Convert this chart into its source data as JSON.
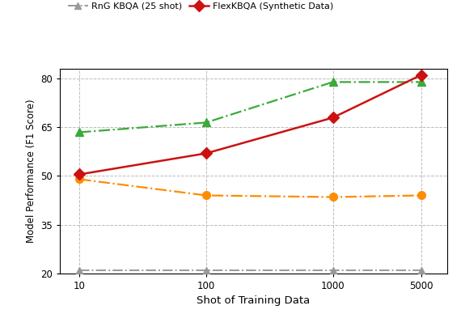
{
  "x": [
    10,
    100,
    1000,
    5000
  ],
  "pangu": [
    63.5,
    66.5,
    79.0,
    79.0
  ],
  "unifiedskg": [
    49.0,
    44.0,
    43.5,
    44.0
  ],
  "rng_kbqa": [
    21.0,
    21.0,
    21.0,
    21.0
  ],
  "flexkbqa": [
    50.5,
    57.0,
    68.0,
    81.2
  ],
  "rng_label": "RnG KBQA (25 shot)",
  "flex_label": "FlexKBQA (Synthetic Data)",
  "pangu_color": "#3aaa3a",
  "unifiedskg_color": "#ff8c00",
  "rng_color": "#999999",
  "flex_color": "#cc1111",
  "xlabel": "Shot of Training Data",
  "ylabel": "Model Performance (F1 Score)",
  "ylim": [
    20,
    83
  ],
  "yticks": [
    20,
    35,
    50,
    65,
    80
  ],
  "bg_color": "#ffffff",
  "grid_color": "#bbbbbb"
}
